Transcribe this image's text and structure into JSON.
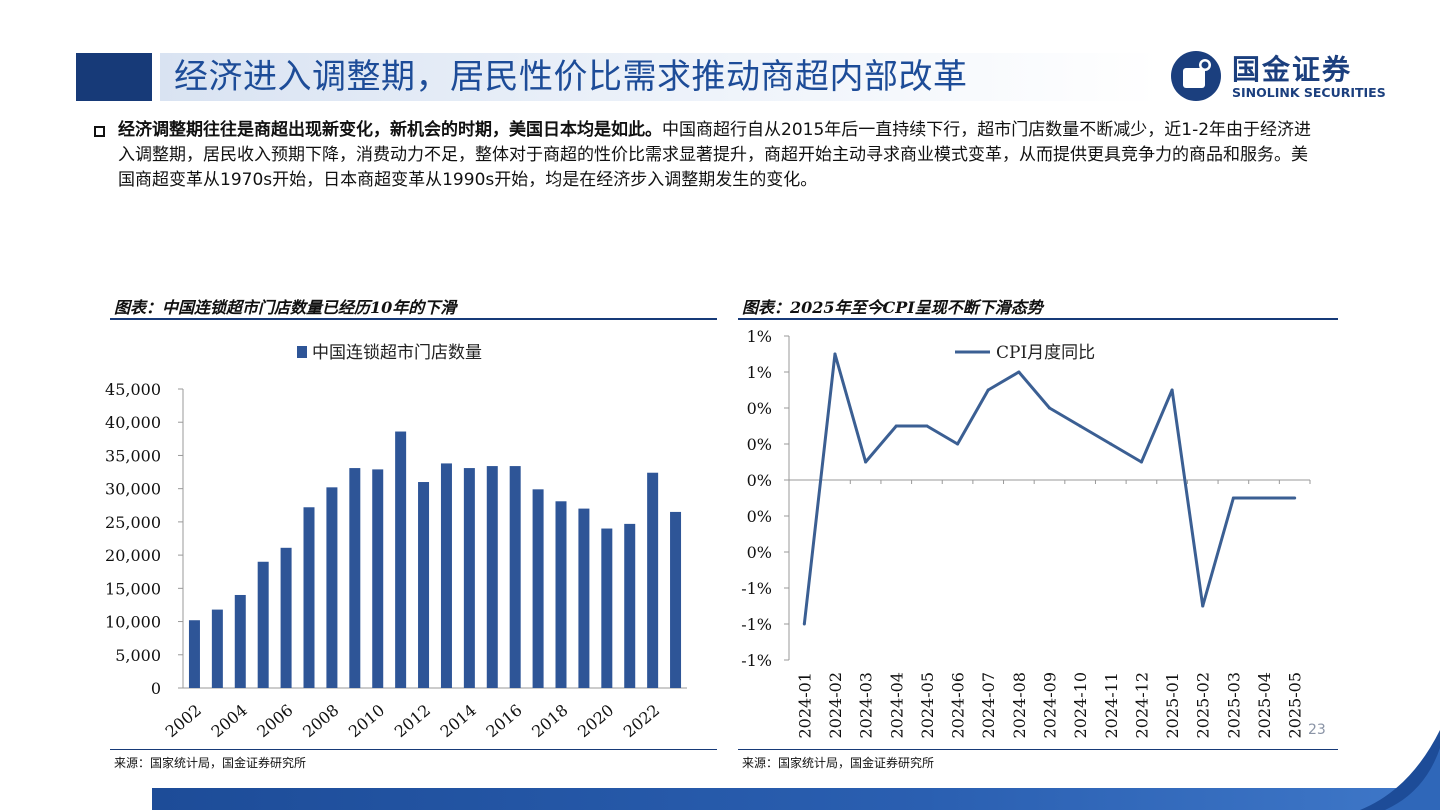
{
  "header": {
    "title": "经济进入调整期，居民性价比需求推动商超内部改革",
    "logo_cn": "国金证券",
    "logo_en": "SINOLINK SECURITIES"
  },
  "body": {
    "bold_lead": "经济调整期往往是商超出现新变化，新机会的时期，美国日本均是如此。",
    "text": "中国商超行自从2015年后一直持续下行，超市门店数量不断减少，近1-2年由于经济进入调整期，居民收入预期下降，消费动力不足，整体对于商超的性价比需求显著提升，商超开始主动寻求商业模式变革，从而提供更具竞争力的商品和服务。美国商超变革从1970s开始，日本商超变革从1990s开始，均是在经济步入调整期发生的变化。"
  },
  "left_panel": {
    "title": "图表：中国连锁超市门店数量已经历10年的下滑",
    "source": "来源：国家统计局，国金证券研究所"
  },
  "right_panel": {
    "title": "图表：2025年至今CPI呈现不断下滑态势",
    "source": "来源：国家统计局，国金证券研究所"
  },
  "page_number": "23",
  "colors": {
    "brand": "#173a78",
    "bar": "#2e5597",
    "line": "#3b5f93"
  },
  "chart_data": [
    {
      "type": "bar",
      "legend": "中国连锁超市门店数量",
      "legend_position": "top",
      "categories": [
        "2002",
        "2003",
        "2004",
        "2005",
        "2006",
        "2007",
        "2008",
        "2009",
        "2010",
        "2011",
        "2012",
        "2013",
        "2014",
        "2015",
        "2016",
        "2017",
        "2018",
        "2019",
        "2020",
        "2021",
        "2022",
        "2023"
      ],
      "x_tick_labels": [
        "2002",
        "2004",
        "2006",
        "2008",
        "2010",
        "2012",
        "2014",
        "2016",
        "2018",
        "2020",
        "2022"
      ],
      "values": [
        10200,
        11800,
        14000,
        19000,
        21100,
        27200,
        30200,
        33100,
        32900,
        38600,
        31000,
        33800,
        33100,
        33400,
        33400,
        29900,
        28100,
        27000,
        24000,
        24700,
        32400,
        26500
      ],
      "y_ticks": [
        "0",
        "5,000",
        "10,000",
        "15,000",
        "20,000",
        "25,000",
        "30,000",
        "35,000",
        "40,000",
        "45,000"
      ],
      "ylim": [
        0,
        45000
      ],
      "grid": false
    },
    {
      "type": "line",
      "legend": "CPI月度同比",
      "legend_position": "top",
      "x": [
        "2024-01",
        "2024-02",
        "2024-03",
        "2024-04",
        "2024-05",
        "2024-06",
        "2024-07",
        "2024-08",
        "2024-09",
        "2024-10",
        "2024-11",
        "2024-12",
        "2025-01",
        "2025-02",
        "2025-03",
        "2025-04",
        "2025-05"
      ],
      "values": [
        -0.8,
        0.7,
        0.1,
        0.3,
        0.3,
        0.2,
        0.5,
        0.6,
        0.4,
        0.3,
        0.2,
        0.1,
        0.5,
        -0.7,
        -0.1,
        -0.1,
        -0.1
      ],
      "y_ticks": [
        "-1%",
        "-1%",
        "-1%",
        "0%",
        "0%",
        "0%",
        "0%",
        "0%",
        "1%",
        "1%"
      ],
      "ylim": [
        -1.0,
        0.8
      ],
      "grid": false
    }
  ]
}
